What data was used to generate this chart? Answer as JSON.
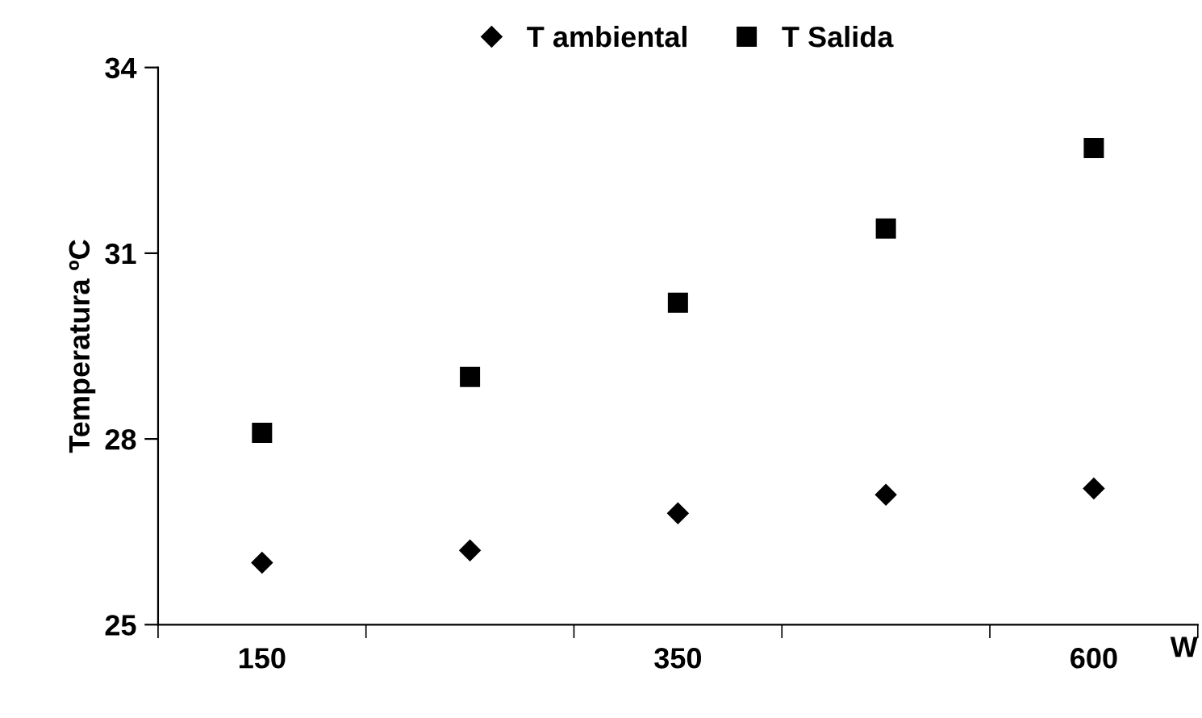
{
  "chart_data": {
    "type": "scatter",
    "xlabel": "W",
    "ylabel": "Temperatura ºC",
    "categories": [
      "150",
      null,
      "350",
      null,
      "600"
    ],
    "series": [
      {
        "name": "T ambiental",
        "color": "#000000",
        "marker": "diamond",
        "values": [
          26.0,
          26.2,
          26.8,
          27.1,
          27.2
        ]
      },
      {
        "name": "T Salida",
        "color": "#000000",
        "marker": "square",
        "values": [
          28.1,
          29.0,
          30.2,
          31.4,
          32.7
        ]
      }
    ],
    "ylim": [
      25,
      34
    ],
    "yticks": [
      25,
      28,
      31,
      34
    ],
    "grid": false,
    "legend": "top"
  }
}
